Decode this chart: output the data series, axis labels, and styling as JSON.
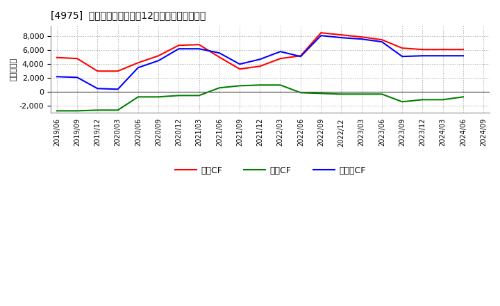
{
  "title": "[4975]  キャッシュフローの12か月移動合計の推移",
  "ylabel": "（百万円）",
  "background_color": "#ffffff",
  "plot_bg_color": "#ffffff",
  "grid_color": "#999999",
  "dates": [
    "2019/06",
    "2019/09",
    "2019/12",
    "2020/03",
    "2020/06",
    "2020/09",
    "2020/12",
    "2021/03",
    "2021/06",
    "2021/09",
    "2021/12",
    "2022/03",
    "2022/06",
    "2022/09",
    "2022/12",
    "2023/03",
    "2023/06",
    "2023/09",
    "2023/12",
    "2024/03",
    "2024/06",
    "2024/09"
  ],
  "eigyo_cf": [
    4950,
    4800,
    3000,
    3000,
    4200,
    5200,
    6700,
    6800,
    5000,
    3300,
    3700,
    4800,
    5200,
    8500,
    8200,
    7900,
    7500,
    6300,
    6100,
    6100,
    6100,
    null
  ],
  "toshi_cf": [
    -2700,
    -2700,
    -2600,
    -2600,
    -700,
    -700,
    -500,
    -500,
    600,
    900,
    1000,
    1000,
    -100,
    -200,
    -300,
    -300,
    -300,
    -1400,
    -1100,
    -1100,
    -700,
    null
  ],
  "free_cf": [
    2200,
    2100,
    500,
    400,
    3500,
    4500,
    6200,
    6200,
    5600,
    4000,
    4700,
    5800,
    5100,
    8100,
    7800,
    7600,
    7200,
    5100,
    5200,
    5200,
    5200,
    null
  ],
  "series_colors": {
    "eigyo": "#ff0000",
    "toshi": "#008000",
    "free": "#0000ff"
  },
  "series_labels": {
    "eigyo": "営業CF",
    "toshi": "投資CF",
    "free": "フリーCF"
  },
  "ylim": [
    -3000,
    9500
  ],
  "yticks": [
    -2000,
    0,
    2000,
    4000,
    6000,
    8000
  ],
  "line_width": 1.5
}
